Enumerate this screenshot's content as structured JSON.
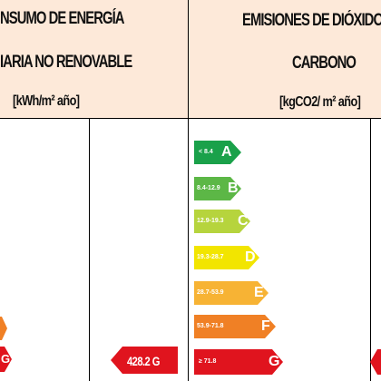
{
  "left_header": {
    "line1": "NSUMO DE ENERGÍA",
    "line2": "IARIA NO RENOVABLE",
    "unit": "[kWh/m² año]"
  },
  "right_header": {
    "line1": "EMISIONES DE DIÓXIDO",
    "line2": "CARBONO",
    "unit": "[kgCO2/ m² año]"
  },
  "left_rating": {
    "value_text": "428.2 G",
    "partial_letter": "G",
    "color": "#e0141e"
  },
  "right_scale": [
    {
      "range": "< 8.4",
      "letter": "A",
      "color": "#1aa14a"
    },
    {
      "range": "8.4-12.9",
      "letter": "B",
      "color": "#5cb746"
    },
    {
      "range": "12.9-19.3",
      "letter": "C",
      "color": "#b6d43d"
    },
    {
      "range": "19.3-28.7",
      "letter": "D",
      "color": "#f2e500"
    },
    {
      "range": "28.7-53.9",
      "letter": "E",
      "color": "#f7b334"
    },
    {
      "range": "53.9-71.8",
      "letter": "F",
      "color": "#f08025"
    },
    {
      "range": "≥ 71.8",
      "letter": "G",
      "color": "#e0141e"
    }
  ]
}
